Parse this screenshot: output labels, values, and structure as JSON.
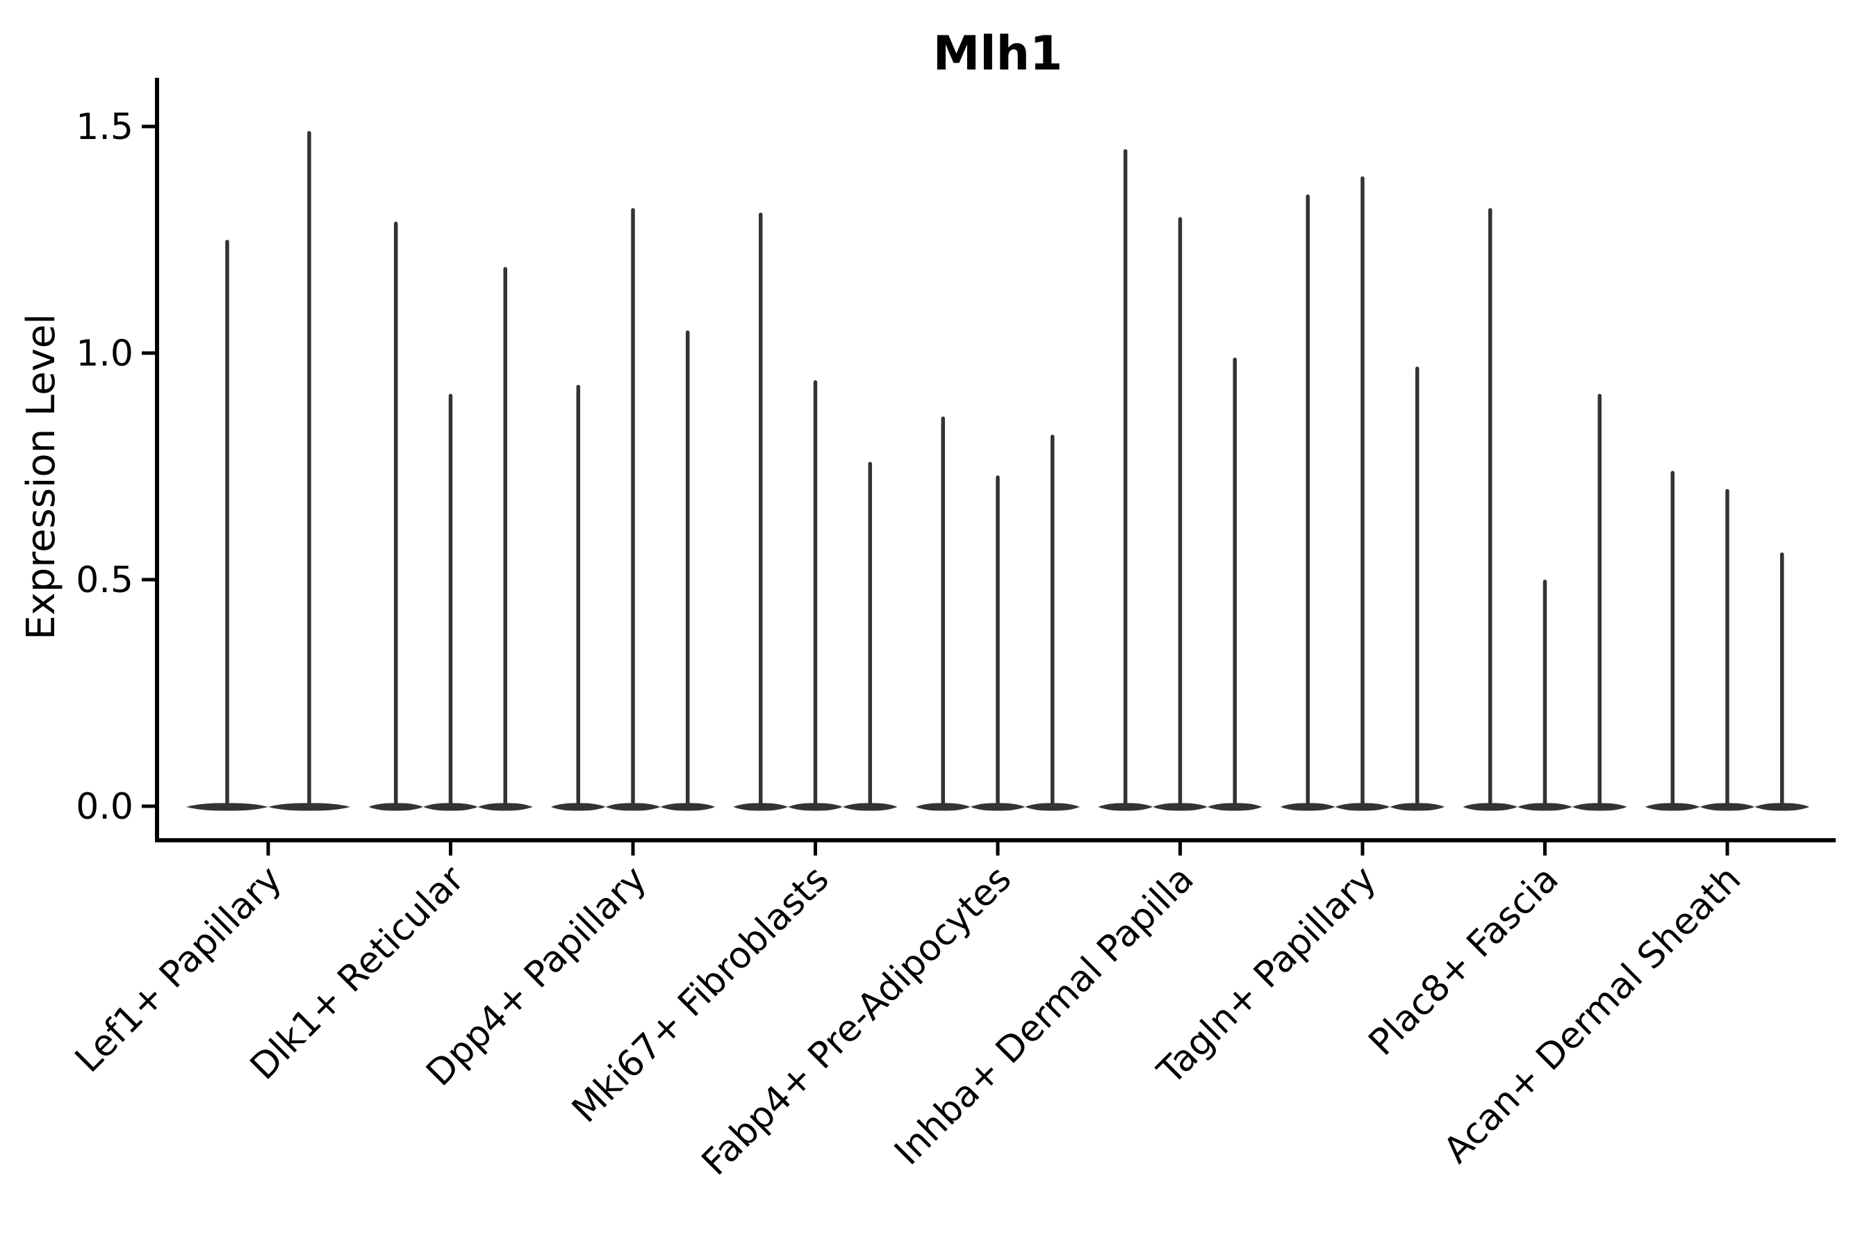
{
  "figure": {
    "background_color": "#ffffff"
  },
  "chart_data": {
    "type": "violin",
    "title": "Mlh1",
    "ylabel": "Expression Level",
    "xlabel": "",
    "ylim": [
      0.0,
      1.55
    ],
    "yticks": [
      {
        "value": 0.0,
        "label": "0.0"
      },
      {
        "value": 0.5,
        "label": "0.5"
      },
      {
        "value": 1.0,
        "label": "1.0"
      },
      {
        "value": 1.5,
        "label": "1.5"
      }
    ],
    "grid": false,
    "legend": null,
    "x_tick_rotation_deg": 45,
    "violin_color": "#333333",
    "axis_color": "#000000",
    "baseline_value": 0.0,
    "groups": [
      {
        "category": "Lef1+ Papillary",
        "violin_maxima": [
          1.25,
          1.49
        ]
      },
      {
        "category": "Dlk1+ Reticular",
        "violin_maxima": [
          1.29,
          0.91,
          1.19
        ]
      },
      {
        "category": "Dpp4+ Papillary",
        "violin_maxima": [
          0.93,
          1.32,
          1.05
        ]
      },
      {
        "category": "Mki67+ Fibroblasts",
        "violin_maxima": [
          1.31,
          0.94,
          0.76
        ]
      },
      {
        "category": "Fabp4+ Pre-Adipocytes",
        "violin_maxima": [
          0.86,
          0.73,
          0.82
        ]
      },
      {
        "category": "Inhba+ Dermal Papilla",
        "violin_maxima": [
          1.45,
          1.3,
          0.99
        ]
      },
      {
        "category": "Tagln+ Papillary",
        "violin_maxima": [
          1.35,
          1.39,
          0.97
        ]
      },
      {
        "category": "Plac8+ Fascia",
        "violin_maxima": [
          1.32,
          0.5,
          0.91
        ]
      },
      {
        "category": "Acan+ Dermal Sheath",
        "violin_maxima": [
          0.74,
          0.7,
          0.56
        ]
      }
    ]
  }
}
